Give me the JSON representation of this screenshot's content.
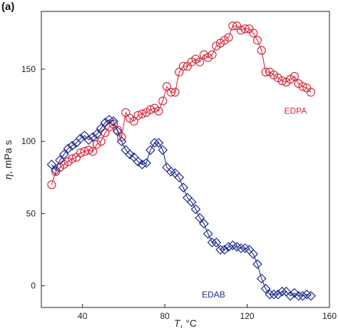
{
  "chart_data": {
    "type": "line",
    "panel_label": "(a)",
    "xlabel_var": "T",
    "xlabel_unit": ", °C",
    "ylabel_var": "η",
    "ylabel_unit": ", mPa s",
    "xlim": [
      20,
      160
    ],
    "ylim": [
      -15,
      190
    ],
    "xticks": [
      40,
      80,
      120,
      160
    ],
    "yticks": [
      0,
      50,
      100,
      150
    ],
    "grid": false,
    "series": [
      {
        "name": "EDPA",
        "color": "#d42a3a",
        "marker": "circle",
        "label_at": [
          138,
          119
        ],
        "x": [
          25,
          27,
          29,
          31,
          33,
          35,
          37,
          39,
          41,
          43,
          45,
          47,
          49,
          51,
          53,
          55,
          57,
          59,
          61,
          63,
          65,
          67,
          69,
          71,
          73,
          75,
          77,
          79,
          81,
          83,
          85,
          87,
          89,
          91,
          93,
          95,
          97,
          99,
          101,
          103,
          105,
          107,
          109,
          111,
          113,
          115,
          117,
          119,
          121,
          123,
          125,
          127,
          129,
          131,
          133,
          135,
          137,
          139,
          141,
          143,
          145,
          147,
          149,
          151
        ],
        "y": [
          70,
          79,
          82,
          84,
          86,
          88,
          89,
          92,
          93,
          94,
          93,
          98,
          100,
          106,
          110,
          112,
          108,
          103,
          120,
          116,
          114,
          118,
          119,
          120,
          122,
          123,
          121,
          128,
          138,
          134,
          134,
          148,
          152,
          152,
          155,
          157,
          155,
          160,
          158,
          160,
          166,
          168,
          170,
          172,
          180,
          180,
          177,
          178,
          178,
          175,
          170,
          163,
          148,
          148,
          146,
          144,
          142,
          141,
          143,
          145,
          140,
          138,
          137,
          134
        ]
      },
      {
        "name": "EDAB",
        "color": "#1e2a8a",
        "marker": "diamond",
        "label_at": [
          98,
          -8
        ],
        "x": [
          25,
          27,
          29,
          31,
          33,
          35,
          37,
          39,
          41,
          43,
          45,
          47,
          49,
          51,
          53,
          55,
          57,
          59,
          61,
          63,
          65,
          67,
          69,
          71,
          73,
          75,
          77,
          79,
          81,
          83,
          85,
          87,
          89,
          91,
          93,
          95,
          97,
          99,
          101,
          103,
          105,
          107,
          109,
          111,
          113,
          115,
          117,
          119,
          121,
          123,
          125,
          127,
          129,
          131,
          133,
          135,
          137,
          139,
          141,
          143,
          145,
          147,
          149,
          151
        ],
        "y": [
          84,
          80,
          87,
          91,
          95,
          97,
          99,
          102,
          104,
          101,
          103,
          105,
          109,
          113,
          115,
          114,
          107,
          100,
          94,
          91,
          89,
          86,
          84,
          85,
          94,
          99,
          99,
          94,
          82,
          79,
          78,
          75,
          68,
          61,
          58,
          53,
          47,
          43,
          36,
          30,
          30,
          25,
          25,
          27,
          28,
          27,
          26,
          26,
          25,
          22,
          15,
          5,
          -2,
          -6,
          -6,
          -6,
          -4,
          -4,
          -7,
          -5,
          -7,
          -7,
          -6,
          -7
        ]
      }
    ]
  }
}
